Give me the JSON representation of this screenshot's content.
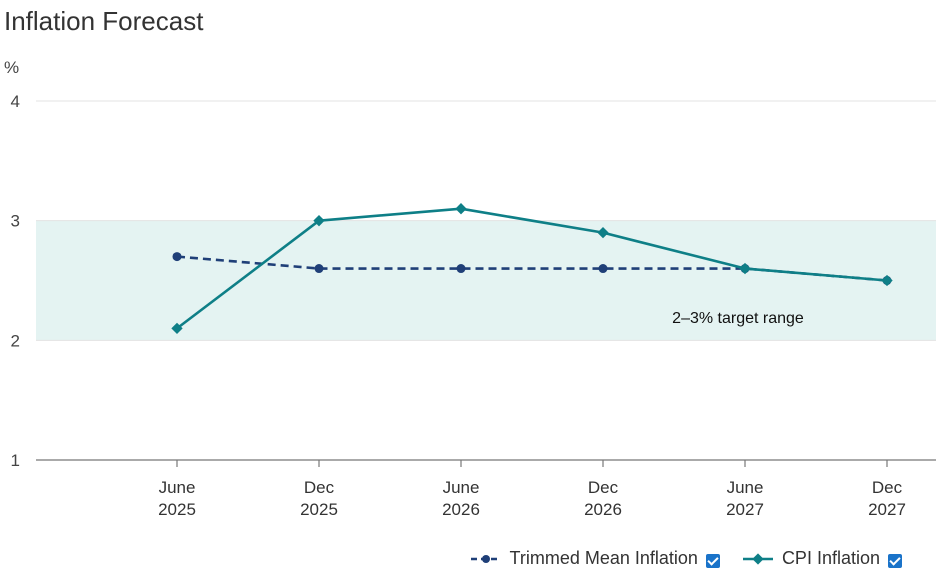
{
  "chart_data": {
    "type": "line",
    "title": "Inflation Forecast",
    "ylabel": "%",
    "ylim": [
      1,
      4
    ],
    "yticks": [
      1,
      2,
      3,
      4
    ],
    "categories": [
      [
        "June",
        "2025"
      ],
      [
        "Dec",
        "2025"
      ],
      [
        "June",
        "2026"
      ],
      [
        "Dec",
        "2026"
      ],
      [
        "June",
        "2027"
      ],
      [
        "Dec",
        "2027"
      ]
    ],
    "band": {
      "from": 2,
      "to": 3,
      "label": "2–3% target range",
      "color": "#e4f3f2"
    },
    "series": [
      {
        "name": "Trimmed Mean Inflation",
        "values": [
          2.7,
          2.6,
          2.6,
          2.6,
          2.6,
          2.5
        ],
        "color": "#1f3f78",
        "dash": true,
        "marker": "circle",
        "checked": true
      },
      {
        "name": "CPI Inflation",
        "values": [
          2.1,
          3.0,
          3.1,
          2.9,
          2.6,
          2.5
        ],
        "color": "#0e7f87",
        "dash": false,
        "marker": "diamond",
        "checked": true
      }
    ],
    "grid": true,
    "legend": "bottom-right"
  }
}
